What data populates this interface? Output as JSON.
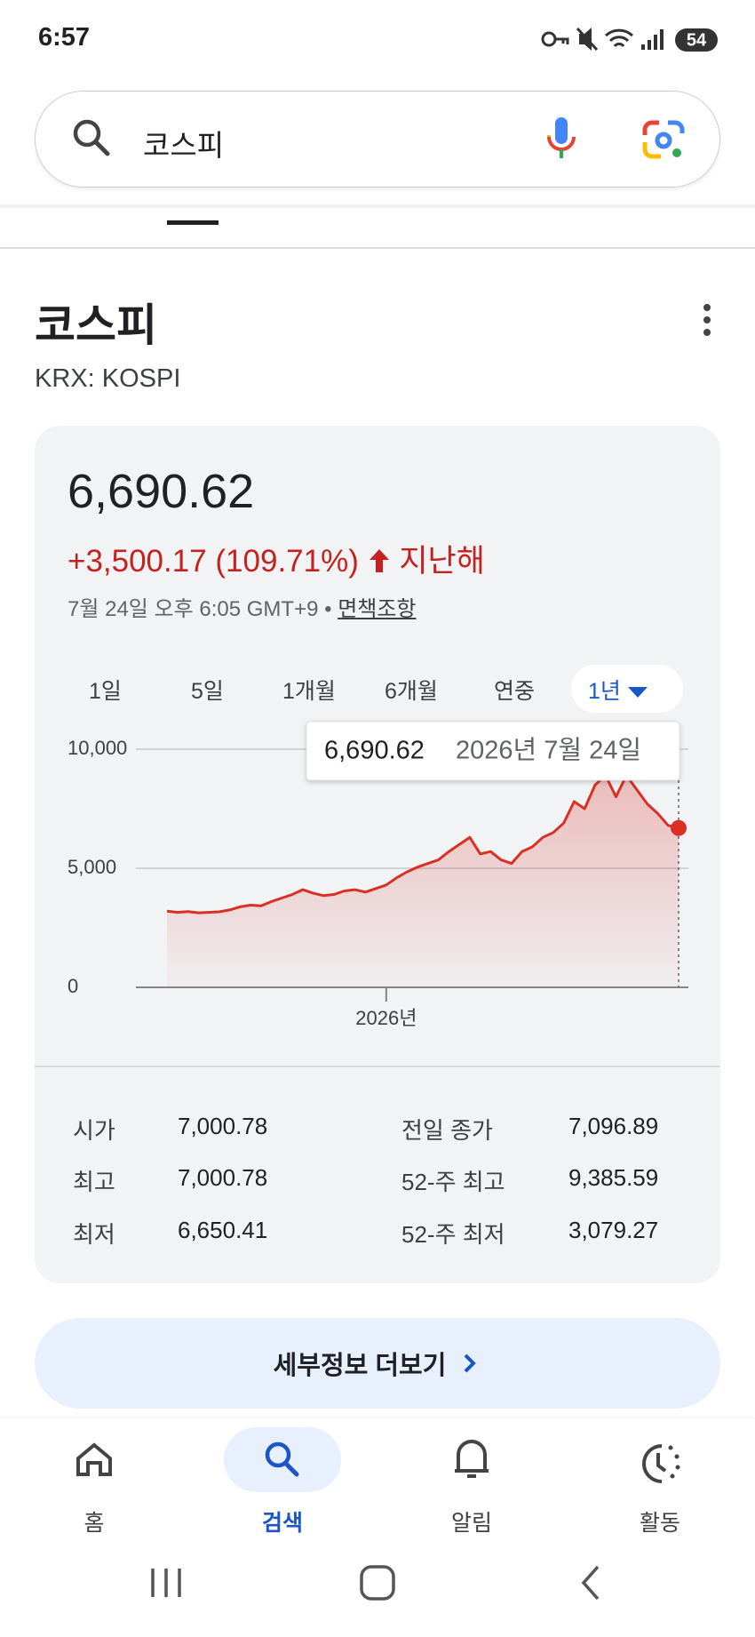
{
  "status_bar": {
    "time": "6:57",
    "battery": "54"
  },
  "search": {
    "query": "코스피"
  },
  "header": {
    "title": "코스피",
    "ticker": "KRX: KOSPI"
  },
  "quote": {
    "price": "6,690.62",
    "change": "+3,500.17 (109.71%)",
    "period": "지난해",
    "timestamp": "7월 24일 오후 6:05 GMT+9",
    "separator": "•",
    "disclaimer": "면책조항"
  },
  "ranges": [
    "1일",
    "5일",
    "1개월",
    "6개월",
    "연중",
    "1년"
  ],
  "chart_data": {
    "type": "line",
    "color": "#d93025",
    "categories": [
      null,
      null,
      null,
      null,
      null,
      null,
      null,
      null,
      null,
      null,
      null,
      null,
      null,
      null,
      null,
      null,
      null,
      null,
      null,
      null,
      null,
      "2026년",
      null,
      null,
      null,
      null,
      null,
      null,
      null,
      null,
      null,
      null,
      null,
      null,
      null,
      null,
      null,
      null,
      null,
      null,
      null,
      null,
      null,
      null,
      null,
      null,
      null,
      null,
      null,
      null
    ],
    "values": [
      3200,
      3150,
      3180,
      3130,
      3150,
      3170,
      3250,
      3380,
      3450,
      3420,
      3600,
      3750,
      3900,
      4100,
      3950,
      3850,
      3900,
      4050,
      4100,
      4000,
      4150,
      4300,
      4600,
      4850,
      5050,
      5200,
      5350,
      5700,
      6000,
      6300,
      5600,
      5700,
      5350,
      5200,
      5700,
      5900,
      6300,
      6500,
      6900,
      7800,
      7500,
      8500,
      8900,
      8000,
      8900,
      8300,
      7700,
      7300,
      6800,
      6690.62
    ],
    "ylim": [
      0,
      10000
    ],
    "yticks": [
      0,
      {
        "value": 5000,
        "label": "5,000"
      },
      {
        "value": 10000,
        "label": "10,000"
      }
    ],
    "grid": true,
    "tooltip": {
      "value": "6,690.62",
      "date": "2026년 7월 24일"
    }
  },
  "stats": [
    [
      "시가",
      "7,000.78",
      "전일 종가",
      "7,096.89"
    ],
    [
      "최고",
      "7,000.78",
      "52-주 최고",
      "9,385.59"
    ],
    [
      "최저",
      "6,650.41",
      "52-주 최저",
      "3,079.27"
    ]
  ],
  "button": "세부정보 더보기",
  "nav": [
    "홈",
    "검색",
    "알림",
    "활동"
  ]
}
